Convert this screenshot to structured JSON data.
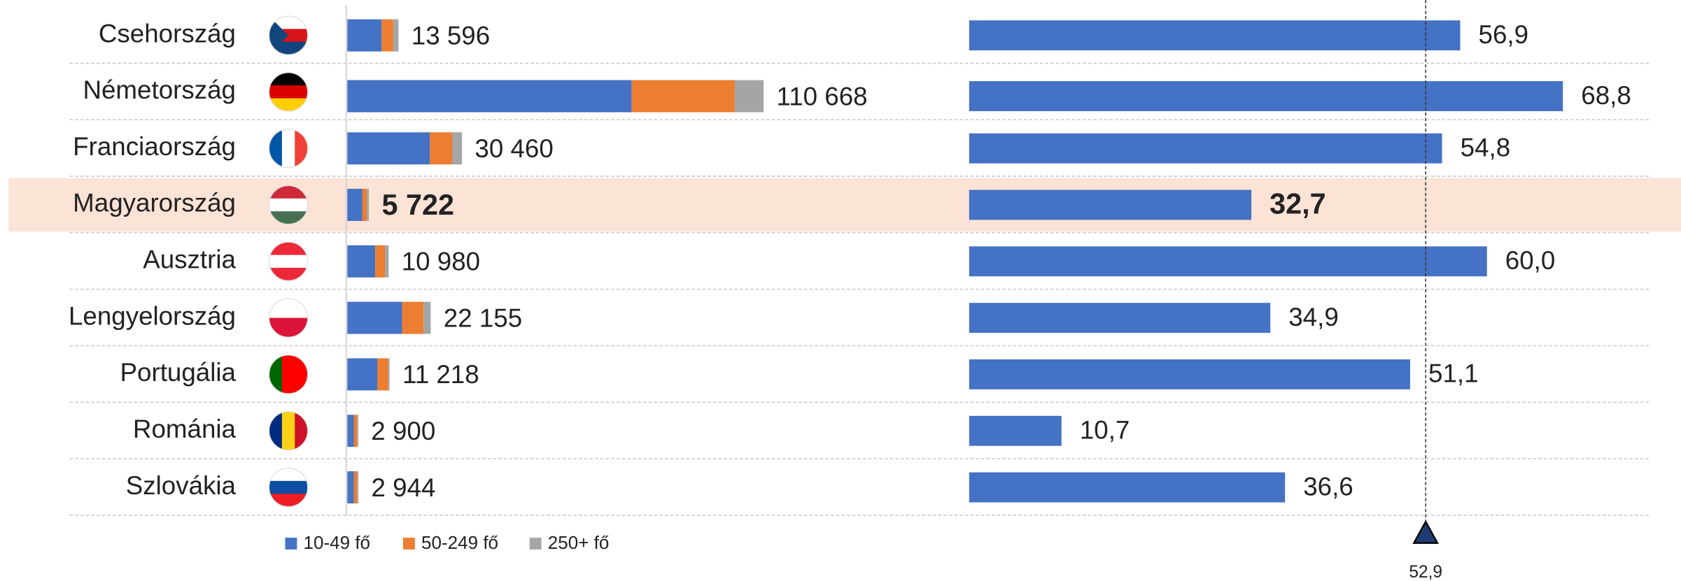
{
  "chart_data": [
    {
      "type": "stacked-bar",
      "categories": [
        "Csehország",
        "Németország",
        "Franciaország",
        "Magyarország",
        "Ausztria",
        "Lengyelország",
        "Portugália",
        "Románia",
        "Szlovákia"
      ],
      "series": [
        {
          "name": "10-49 fő",
          "color": "#4472c4",
          "values": [
            9100,
            75600,
            21950,
            4000,
            7400,
            14550,
            8000,
            1700,
            1700
          ]
        },
        {
          "name": "50-249 fő",
          "color": "#ed7d31",
          "values": [
            3100,
            27400,
            6000,
            1150,
            2600,
            5700,
            2850,
            900,
            900
          ]
        },
        {
          "name": "250+ fő",
          "color": "#a5a5a5",
          "values": [
            1396,
            7668,
            2510,
            572,
            980,
            1905,
            368,
            300,
            344
          ]
        }
      ],
      "totals": [
        13596,
        110668,
        30460,
        5722,
        10980,
        22155,
        11218,
        2900,
        2944
      ],
      "total_labels": [
        "13 596",
        "110 668",
        "30 460",
        "5 722",
        "10 980",
        "22 155",
        "11 218",
        "2 900",
        "2 944"
      ],
      "xlim": [
        0,
        120000
      ],
      "highlight_index": 3
    },
    {
      "type": "bar",
      "values": [
        56.9,
        68.8,
        54.8,
        32.7,
        60.0,
        34.9,
        51.1,
        10.7,
        36.6
      ],
      "value_labels": [
        "56,9",
        "68,8",
        "54,8",
        "32,7",
        "60,0",
        "34,9",
        "51,1",
        "10,7",
        "36,6"
      ],
      "color": "#4472c4",
      "xlim": [
        0,
        70
      ],
      "reference": {
        "value": 52.9,
        "label": "52,9"
      },
      "highlight_index": 3
    }
  ]
}
